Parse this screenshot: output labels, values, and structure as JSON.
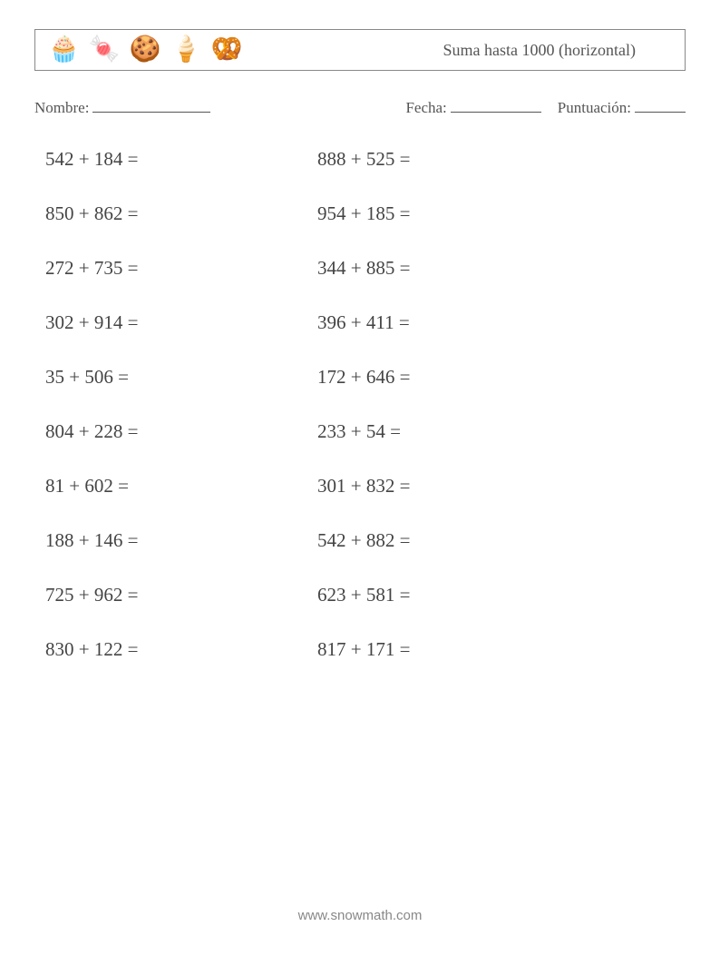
{
  "header": {
    "title": "Suma hasta 1000 (horizontal)",
    "icons": [
      "🧁",
      "🍬",
      "🍪",
      "🍦",
      "🥨"
    ]
  },
  "meta": {
    "name_label": "Nombre:",
    "date_label": "Fecha:",
    "score_label": "Puntuación:"
  },
  "style": {
    "problem_fontsize": "21px",
    "text_color": "#444",
    "meta_color": "#555",
    "border_color": "#888",
    "background_color": "#ffffff"
  },
  "problems": {
    "left_column": [
      "542 + 184 =",
      "850 + 862 =",
      "272 + 735 =",
      "302 + 914 =",
      "35 + 506 =",
      "804 + 228 =",
      "81 + 602 =",
      "188 + 146 =",
      "725 + 962 =",
      "830 + 122 ="
    ],
    "right_column": [
      "888 + 525 =",
      "954 + 185 =",
      "344 + 885 =",
      "396 + 411 =",
      "172 + 646 =",
      "233 + 54 =",
      "301 + 832 =",
      "542 + 882 =",
      "623 + 581 =",
      "817 + 171 ="
    ]
  },
  "footer": {
    "url": "www.snowmath.com"
  }
}
